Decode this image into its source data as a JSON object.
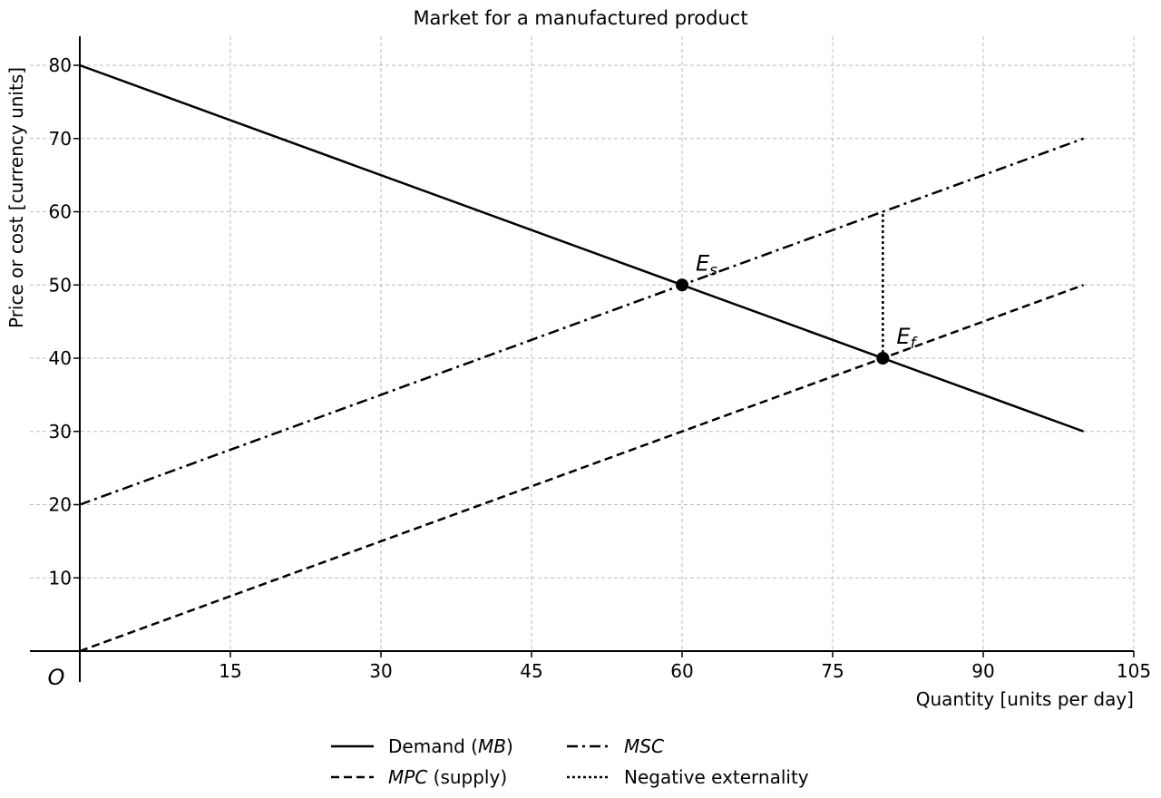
{
  "chart_data": {
    "type": "line",
    "title": "Market for a manufactured product",
    "xlabel": "Quantity [units per day]",
    "ylabel": "Price or cost [currency units]",
    "origin_label": "O",
    "xlim": [
      0,
      105
    ],
    "ylim": [
      0,
      80
    ],
    "xticks": [
      15,
      30,
      45,
      60,
      75,
      90,
      105
    ],
    "yticks": [
      10,
      20,
      30,
      40,
      50,
      60,
      70,
      80
    ],
    "grid": true,
    "legend_position": "bottom",
    "series": [
      {
        "key": "demand",
        "style": "solid",
        "x": [
          0,
          100
        ],
        "y": [
          80,
          30
        ],
        "legend": [
          {
            "t": "Demand ("
          },
          {
            "t": "MB",
            "i": true
          },
          {
            "t": ")"
          }
        ]
      },
      {
        "key": "mpc",
        "style": "dashed",
        "x": [
          0,
          100
        ],
        "y": [
          0,
          50
        ],
        "legend": [
          {
            "t": "MPC",
            "i": true
          },
          {
            "t": " (supply)"
          }
        ]
      },
      {
        "key": "msc",
        "style": "dashdot",
        "x": [
          0,
          100
        ],
        "y": [
          20,
          70
        ],
        "legend": [
          {
            "t": "MSC",
            "i": true
          }
        ]
      },
      {
        "key": "externality",
        "style": "dotted",
        "x": [
          80,
          80
        ],
        "y": [
          40,
          60
        ],
        "legend": [
          {
            "t": "Negative externality"
          }
        ]
      }
    ],
    "points": [
      {
        "x": 60,
        "y": 50,
        "label": "E",
        "sub": "s"
      },
      {
        "x": 80,
        "y": 40,
        "label": "E",
        "sub": "f"
      }
    ],
    "colors": {
      "line": "#000000",
      "grid": "#bbbbbb"
    }
  }
}
